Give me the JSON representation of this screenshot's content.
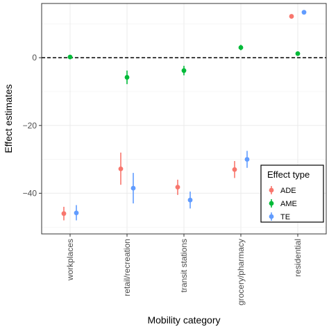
{
  "chart_data": {
    "type": "scatter",
    "subtype": "pointrange",
    "categories": [
      "workplaces",
      "retail/recreation",
      "transit stations",
      "grocery/pharmacy",
      "residential"
    ],
    "xlabel": "Mobility category",
    "ylabel": "Effect estimates",
    "ylim": [
      -52,
      16
    ],
    "yticks": [
      0,
      -20,
      -40
    ],
    "reference_line": {
      "y": 0,
      "style": "dashed",
      "color": "#000000"
    },
    "grid": true,
    "legend": {
      "title": "Effect type",
      "position": "bottom-right"
    },
    "series": [
      {
        "name": "ADE",
        "color": "#F8766D",
        "values": [
          -46.0,
          -32.8,
          -38.2,
          -33.0,
          12.2
        ],
        "lower": [
          -48.0,
          -37.5,
          -40.5,
          -35.5,
          11.8
        ],
        "upper": [
          -44.0,
          -28.0,
          -36.0,
          -30.5,
          12.6
        ]
      },
      {
        "name": "AME",
        "color": "#00BA38",
        "values": [
          0.2,
          -5.8,
          -3.8,
          3.0,
          1.2
        ],
        "lower": [
          -0.3,
          -7.8,
          -5.2,
          2.2,
          0.8
        ],
        "upper": [
          0.7,
          -3.8,
          -2.4,
          3.8,
          1.6
        ]
      },
      {
        "name": "TE",
        "color": "#619CFF",
        "values": [
          -45.8,
          -38.5,
          -42.0,
          -30.0,
          13.4
        ],
        "lower": [
          -48.0,
          -43.0,
          -44.5,
          -32.5,
          13.0
        ],
        "upper": [
          -43.5,
          -34.0,
          -39.5,
          -27.5,
          13.8
        ]
      }
    ]
  }
}
